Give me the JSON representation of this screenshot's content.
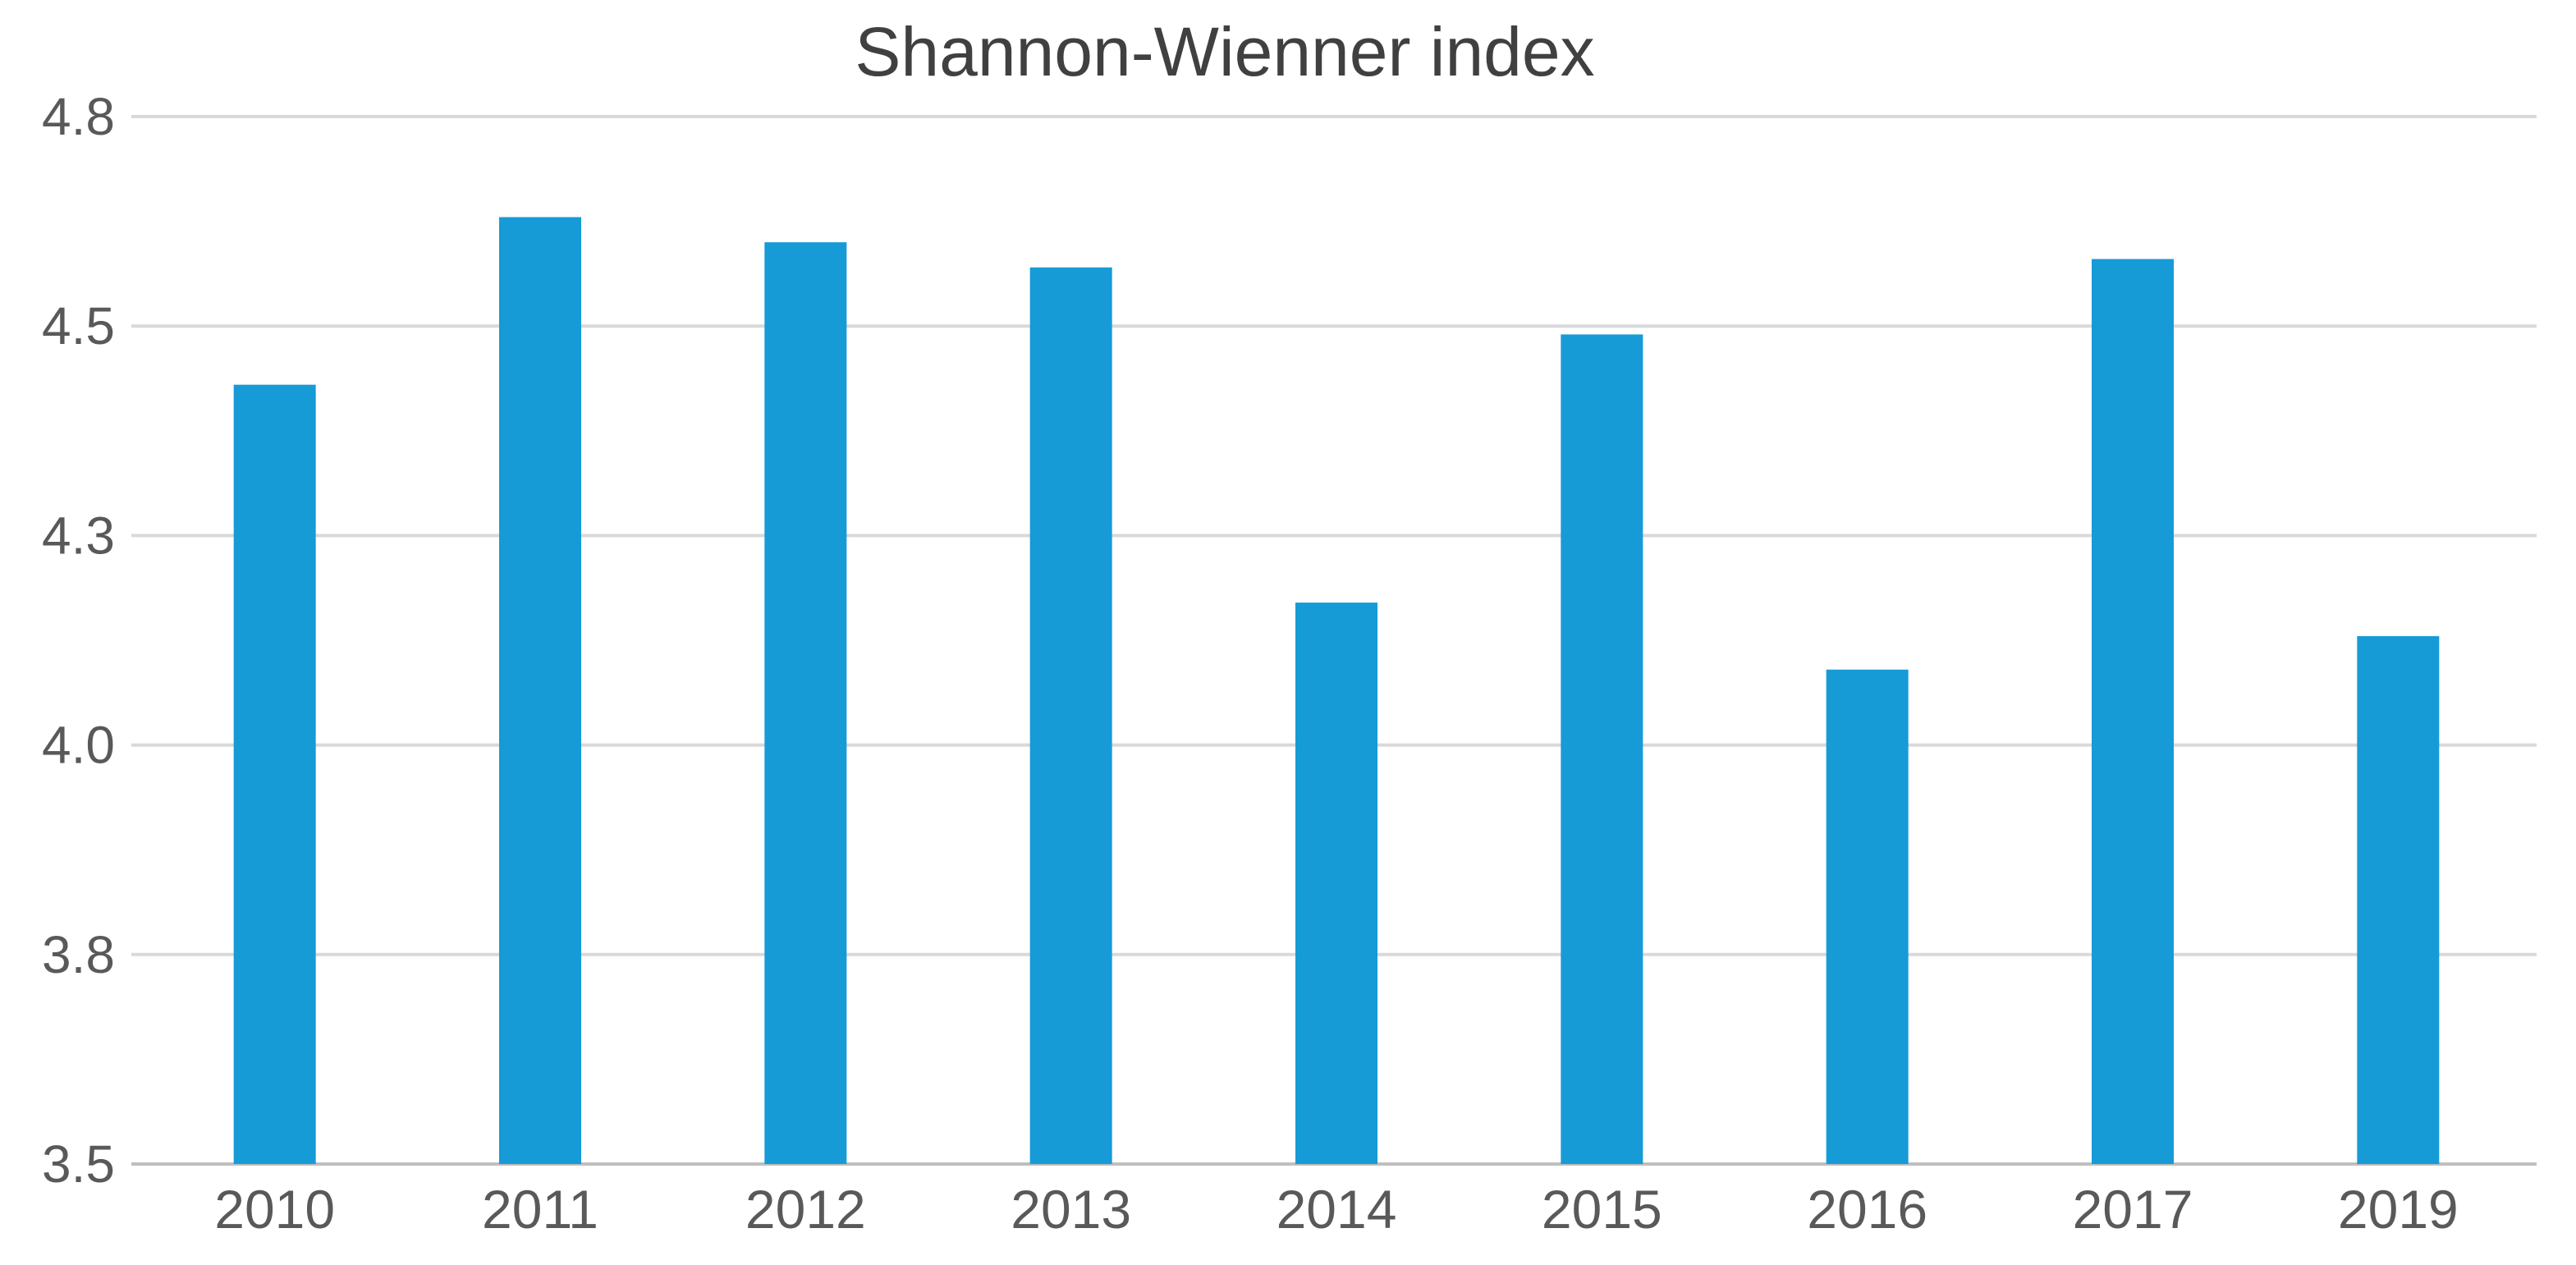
{
  "chart_data": {
    "type": "bar",
    "title": "Shannon-Wienner index",
    "xlabel": "",
    "ylabel": "",
    "categories": [
      "2010",
      "2011",
      "2012",
      "2013",
      "2014",
      "2015",
      "2016",
      "2017",
      "2019"
    ],
    "values": [
      4.43,
      4.63,
      4.6,
      4.57,
      4.17,
      4.49,
      4.09,
      4.58,
      4.13
    ],
    "ylim": [
      3.5,
      4.75
    ],
    "yticks": [
      3.5,
      3.75,
      4.0,
      4.25,
      4.5,
      4.75
    ],
    "ytick_labels": [
      "3.5",
      "3.8",
      "4.0",
      "4.3",
      "4.5",
      "4.8"
    ],
    "grid": true,
    "legend": "none",
    "bar_color": "#169bd7"
  }
}
